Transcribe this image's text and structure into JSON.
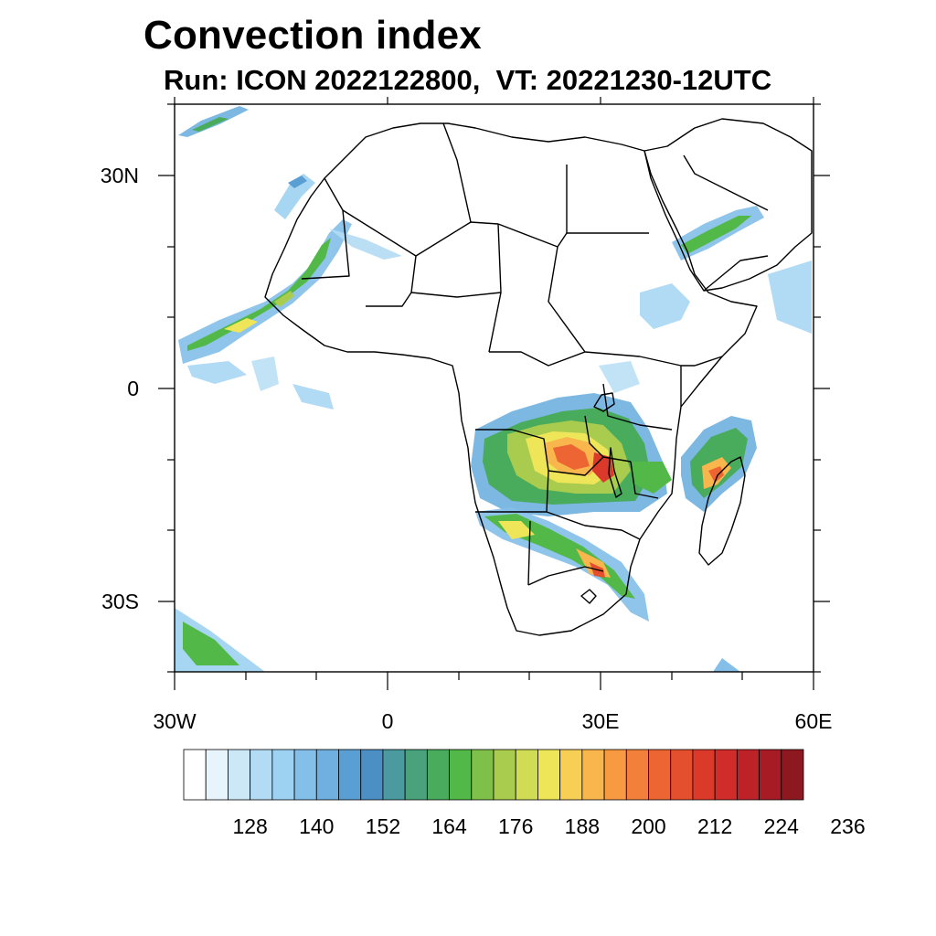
{
  "header": {
    "title": "Convection index",
    "subtitle": "Run: ICON 2022122800,  VT: 20221230-12UTC"
  },
  "axes": {
    "lat_labels": [
      "30N",
      "0",
      "30S"
    ],
    "lon_labels": [
      "30W",
      "0",
      "30E",
      "60E"
    ]
  },
  "colorbar": {
    "labels": [
      "128",
      "140",
      "152",
      "164",
      "176",
      "188",
      "200",
      "212",
      "224",
      "236"
    ],
    "colors": [
      "#ffffff",
      "#e8f4fb",
      "#cce7f6",
      "#b3dcf4",
      "#9dd2f2",
      "#84bfe9",
      "#6fb0e0",
      "#5a9fd4",
      "#4b8fc4",
      "#4a9aa0",
      "#4aa27c",
      "#49ab5c",
      "#52b848",
      "#7fc04a",
      "#a9cc4f",
      "#d0dc54",
      "#eee658",
      "#f7cf55",
      "#f8b64d",
      "#f79a42",
      "#f3803a",
      "#ec6532",
      "#e44f2d",
      "#db3a2a",
      "#cf2c2a",
      "#bd2228",
      "#a71c24",
      "#8e1820"
    ]
  },
  "chart_data": {
    "type": "heatmap",
    "title": "Convection index",
    "subtitle": "Run: ICON 2022122800,  VT: 20221230-12UTC",
    "x_range_deg": [
      -30,
      60
    ],
    "y_range_deg": [
      -40,
      40
    ],
    "colorbar_levels": [
      128,
      140,
      152,
      164,
      176,
      188,
      200,
      212,
      224,
      236
    ]
  }
}
